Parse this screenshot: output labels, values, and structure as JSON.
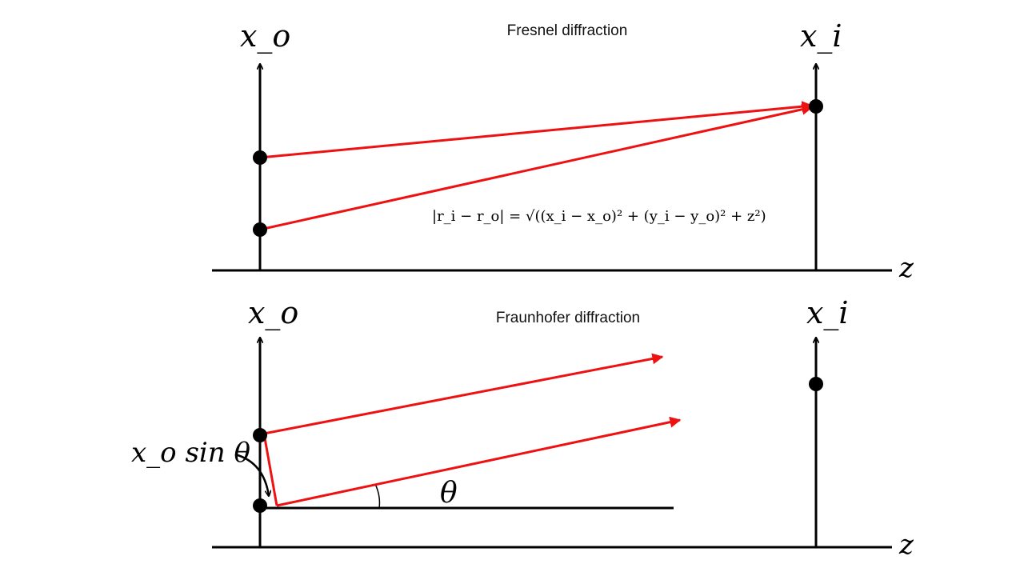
{
  "colors": {
    "axis": "#000000",
    "ray": "#ee1111",
    "dot": "#000000"
  },
  "top_panel": {
    "title": "Fresnel diffraction",
    "object_axis_label": "x_o",
    "image_axis_label": "x_i",
    "z_label": "z",
    "equation": "|r_i − r_o| = √((x_i − x_o)² + (y_i − y_o)² + z²)"
  },
  "bottom_panel": {
    "title": "Fraunhofer diffraction",
    "object_axis_label": "x_o",
    "image_axis_label": "x_i",
    "z_label": "z",
    "path_difference_label": "x_o sin θ",
    "angle_label": "θ"
  }
}
